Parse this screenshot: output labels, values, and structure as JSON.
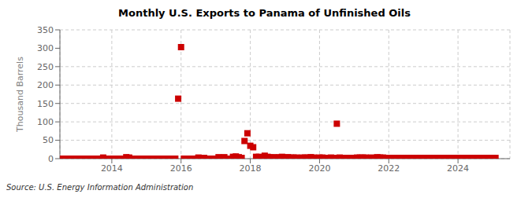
{
  "chart_data": {
    "type": "scatter",
    "title": "Monthly U.S. Exports to Panama of Unfinished Oils",
    "ylabel": "Thousand Barrels",
    "annotation": "Source: U.S. Energy Information Administration",
    "color": "#cc0000",
    "marker": "square",
    "grid": true,
    "xlim": [
      2012.5,
      2025.5
    ],
    "xticks": [
      2014,
      2016,
      2018,
      2020,
      2022,
      2024
    ],
    "ylim": [
      0,
      350
    ],
    "yticks": [
      0,
      50,
      100,
      150,
      200,
      250,
      300,
      350
    ],
    "x": [
      2012.583,
      2012.667,
      2012.75,
      2012.833,
      2012.917,
      2013.0,
      2013.083,
      2013.167,
      2013.25,
      2013.333,
      2013.417,
      2013.5,
      2013.583,
      2013.667,
      2013.75,
      2013.833,
      2013.917,
      2014.0,
      2014.083,
      2014.167,
      2014.25,
      2014.333,
      2014.417,
      2014.5,
      2014.583,
      2014.667,
      2014.75,
      2014.833,
      2014.917,
      2015.0,
      2015.083,
      2015.167,
      2015.25,
      2015.333,
      2015.417,
      2015.5,
      2015.583,
      2015.667,
      2015.75,
      2015.833,
      2015.917,
      2016.0,
      2016.083,
      2016.167,
      2016.25,
      2016.333,
      2016.417,
      2016.5,
      2016.583,
      2016.667,
      2016.75,
      2016.833,
      2016.917,
      2017.0,
      2017.083,
      2017.167,
      2017.25,
      2017.333,
      2017.417,
      2017.5,
      2017.583,
      2017.667,
      2017.75,
      2017.833,
      2017.917,
      2018.0,
      2018.083,
      2018.167,
      2018.25,
      2018.333,
      2018.417,
      2018.5,
      2018.583,
      2018.667,
      2018.75,
      2018.833,
      2018.917,
      2019.0,
      2019.083,
      2019.167,
      2019.25,
      2019.333,
      2019.417,
      2019.5,
      2019.583,
      2019.667,
      2019.75,
      2019.833,
      2019.917,
      2020.0,
      2020.083,
      2020.167,
      2020.25,
      2020.333,
      2020.417,
      2020.5,
      2020.583,
      2020.667,
      2020.75,
      2020.833,
      2020.917,
      2021.0,
      2021.083,
      2021.167,
      2021.25,
      2021.333,
      2021.417,
      2021.5,
      2021.583,
      2021.667,
      2021.75,
      2021.833,
      2021.917,
      2022.0,
      2022.083,
      2022.167,
      2022.25,
      2022.333,
      2022.417,
      2022.5,
      2022.583,
      2022.667,
      2022.75,
      2022.833,
      2022.917,
      2023.0,
      2023.083,
      2023.167,
      2023.25,
      2023.333,
      2023.417,
      2023.5,
      2023.583,
      2023.667,
      2023.75,
      2023.833,
      2023.917,
      2024.0,
      2024.083,
      2024.167,
      2024.25,
      2024.333,
      2024.417,
      2024.5,
      2024.583,
      2024.667,
      2024.75,
      2024.833,
      2024.917,
      2025.0,
      2025.083
    ],
    "values": [
      0,
      0,
      0,
      0,
      0,
      0,
      0,
      0,
      0,
      0,
      0,
      0,
      0,
      0,
      3,
      0,
      0,
      0,
      0,
      0,
      0,
      0,
      4,
      3,
      0,
      0,
      0,
      0,
      0,
      0,
      0,
      0,
      0,
      0,
      0,
      0,
      0,
      0,
      0,
      0,
      163,
      303,
      0,
      0,
      0,
      0,
      0,
      3,
      0,
      2,
      0,
      0,
      0,
      0,
      4,
      2,
      4,
      0,
      0,
      5,
      6,
      4,
      2,
      48,
      69,
      35,
      31,
      5,
      5,
      3,
      8,
      5,
      3,
      4,
      2,
      4,
      5,
      3,
      4,
      3,
      3,
      3,
      2,
      3,
      3,
      3,
      4,
      3,
      2,
      3,
      3,
      2,
      2,
      3,
      2,
      95,
      3,
      2,
      2,
      2,
      2,
      2,
      3,
      3,
      3,
      3,
      2,
      3,
      2,
      4,
      3,
      3,
      2,
      2,
      2,
      2,
      2,
      2,
      2,
      2,
      2,
      2,
      2,
      2,
      2,
      2,
      2,
      2,
      2,
      2,
      2,
      2,
      2,
      2,
      2,
      2,
      2,
      2,
      2,
      2,
      2,
      2,
      2,
      2,
      2,
      2,
      2,
      2,
      2,
      2,
      2
    ]
  }
}
